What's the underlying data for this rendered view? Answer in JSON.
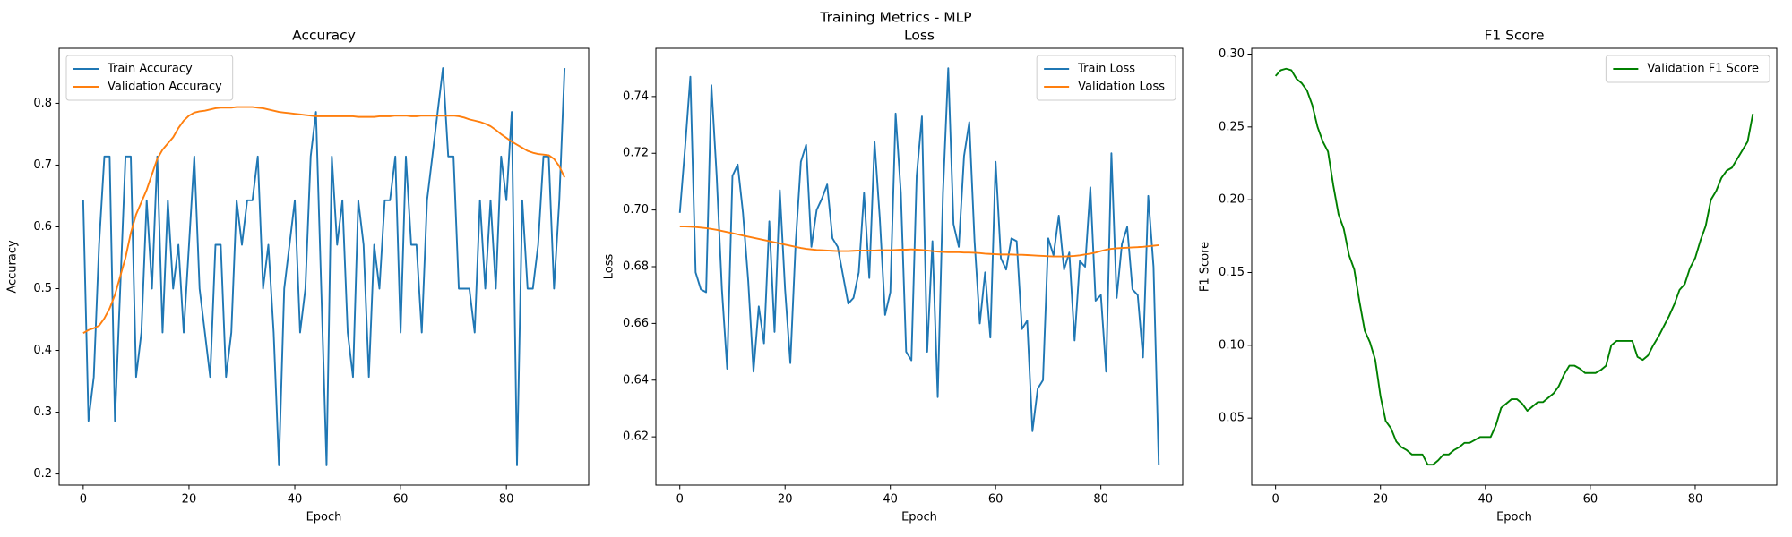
{
  "title": "Training Metrics - MLP",
  "chart_data": [
    {
      "type": "line",
      "title": "Accuracy",
      "xlabel": "Epoch",
      "ylabel": "Accuracy",
      "legend": "upper left",
      "x": [
        0,
        1,
        2,
        3,
        4,
        5,
        6,
        7,
        8,
        9,
        10,
        11,
        12,
        13,
        14,
        15,
        16,
        17,
        18,
        19,
        20,
        21,
        22,
        23,
        24,
        25,
        26,
        27,
        28,
        29,
        30,
        31,
        32,
        33,
        34,
        35,
        36,
        37,
        38,
        39,
        40,
        41,
        42,
        43,
        44,
        45,
        46,
        47,
        48,
        49,
        50,
        51,
        52,
        53,
        54,
        55,
        56,
        57,
        58,
        59,
        60,
        61,
        62,
        63,
        64,
        65,
        66,
        67,
        68,
        69,
        70,
        71,
        72,
        73,
        74,
        75,
        76,
        77,
        78,
        79,
        80,
        81,
        82,
        83,
        84,
        85,
        86,
        87,
        88,
        89,
        90,
        91
      ],
      "xlim": [
        -4.55,
        95.55
      ],
      "xticks": [
        0,
        20,
        40,
        60,
        80
      ],
      "ylim": [
        0.182,
        0.889
      ],
      "yticks": [
        0.2,
        0.3,
        0.4,
        0.5,
        0.6,
        0.7,
        0.8
      ],
      "series": [
        {
          "name": "Train Accuracy",
          "color": "#1f77b4",
          "values": [
            0.643,
            0.286,
            0.357,
            0.571,
            0.714,
            0.714,
            0.286,
            0.5,
            0.714,
            0.714,
            0.357,
            0.429,
            0.643,
            0.5,
            0.714,
            0.429,
            0.643,
            0.5,
            0.571,
            0.429,
            0.571,
            0.714,
            0.5,
            0.429,
            0.357,
            0.571,
            0.571,
            0.357,
            0.429,
            0.643,
            0.571,
            0.643,
            0.643,
            0.714,
            0.5,
            0.571,
            0.429,
            0.214,
            0.5,
            0.571,
            0.643,
            0.429,
            0.5,
            0.714,
            0.786,
            0.5,
            0.214,
            0.714,
            0.571,
            0.643,
            0.429,
            0.357,
            0.643,
            0.571,
            0.357,
            0.571,
            0.5,
            0.643,
            0.643,
            0.714,
            0.429,
            0.714,
            0.571,
            0.571,
            0.429,
            0.643,
            0.714,
            0.786,
            0.857,
            0.714,
            0.714,
            0.5,
            0.5,
            0.5,
            0.429,
            0.643,
            0.5,
            0.643,
            0.5,
            0.714,
            0.643,
            0.786,
            0.214,
            0.643,
            0.5,
            0.5,
            0.571,
            0.714,
            0.714,
            0.5,
            0.643,
            0.857
          ]
        },
        {
          "name": "Validation Accuracy",
          "color": "#ff7f0e",
          "values": [
            0.428,
            0.433,
            0.436,
            0.44,
            0.452,
            0.468,
            0.49,
            0.52,
            0.55,
            0.59,
            0.62,
            0.64,
            0.66,
            0.685,
            0.71,
            0.725,
            0.735,
            0.745,
            0.76,
            0.772,
            0.78,
            0.785,
            0.787,
            0.788,
            0.79,
            0.792,
            0.793,
            0.793,
            0.793,
            0.794,
            0.794,
            0.794,
            0.794,
            0.793,
            0.792,
            0.79,
            0.788,
            0.786,
            0.785,
            0.784,
            0.783,
            0.782,
            0.781,
            0.78,
            0.779,
            0.779,
            0.779,
            0.779,
            0.779,
            0.779,
            0.779,
            0.779,
            0.778,
            0.778,
            0.778,
            0.778,
            0.779,
            0.779,
            0.779,
            0.78,
            0.78,
            0.78,
            0.779,
            0.779,
            0.78,
            0.78,
            0.78,
            0.78,
            0.78,
            0.78,
            0.78,
            0.779,
            0.777,
            0.774,
            0.772,
            0.77,
            0.767,
            0.763,
            0.757,
            0.75,
            0.744,
            0.738,
            0.733,
            0.728,
            0.723,
            0.72,
            0.718,
            0.717,
            0.716,
            0.71,
            0.698,
            0.68
          ]
        }
      ]
    },
    {
      "type": "line",
      "title": "Loss",
      "xlabel": "Epoch",
      "ylabel": "Loss",
      "legend": "upper right",
      "x": [
        0,
        1,
        2,
        3,
        4,
        5,
        6,
        7,
        8,
        9,
        10,
        11,
        12,
        13,
        14,
        15,
        16,
        17,
        18,
        19,
        20,
        21,
        22,
        23,
        24,
        25,
        26,
        27,
        28,
        29,
        30,
        31,
        32,
        33,
        34,
        35,
        36,
        37,
        38,
        39,
        40,
        41,
        42,
        43,
        44,
        45,
        46,
        47,
        48,
        49,
        50,
        51,
        52,
        53,
        54,
        55,
        56,
        57,
        58,
        59,
        60,
        61,
        62,
        63,
        64,
        65,
        66,
        67,
        68,
        69,
        70,
        71,
        72,
        73,
        74,
        75,
        76,
        77,
        78,
        79,
        80,
        81,
        82,
        83,
        84,
        85,
        86,
        87,
        88,
        89,
        90,
        91
      ],
      "xlim": [
        -4.55,
        95.55
      ],
      "xticks": [
        0,
        20,
        40,
        60,
        80
      ],
      "ylim": [
        0.603,
        0.757
      ],
      "yticks": [
        0.62,
        0.64,
        0.66,
        0.68,
        {
          "value": 0.7,
          "label": "0.70"
        },
        0.72,
        0.74
      ],
      "series": [
        {
          "name": "Train Loss",
          "color": "#1f77b4",
          "values": [
            0.699,
            0.722,
            0.747,
            0.678,
            0.672,
            0.671,
            0.744,
            0.712,
            0.672,
            0.644,
            0.712,
            0.716,
            0.699,
            0.675,
            0.643,
            0.666,
            0.653,
            0.696,
            0.657,
            0.707,
            0.672,
            0.646,
            0.688,
            0.717,
            0.723,
            0.687,
            0.7,
            0.704,
            0.709,
            0.69,
            0.687,
            0.677,
            0.667,
            0.669,
            0.678,
            0.706,
            0.676,
            0.724,
            0.697,
            0.663,
            0.671,
            0.734,
            0.706,
            0.65,
            0.647,
            0.712,
            0.733,
            0.65,
            0.689,
            0.634,
            0.706,
            0.75,
            0.695,
            0.687,
            0.719,
            0.731,
            0.689,
            0.66,
            0.678,
            0.655,
            0.717,
            0.683,
            0.679,
            0.69,
            0.689,
            0.658,
            0.661,
            0.622,
            0.637,
            0.64,
            0.69,
            0.684,
            0.698,
            0.679,
            0.685,
            0.654,
            0.682,
            0.68,
            0.708,
            0.668,
            0.67,
            0.643,
            0.72,
            0.669,
            0.688,
            0.694,
            0.672,
            0.67,
            0.648,
            0.705,
            0.68,
            0.61
          ]
        },
        {
          "name": "Validation Loss",
          "color": "#ff7f0e",
          "values": [
            0.6942,
            0.6942,
            0.6941,
            0.694,
            0.6938,
            0.6936,
            0.6933,
            0.693,
            0.6926,
            0.6922,
            0.6918,
            0.6914,
            0.691,
            0.6906,
            0.6902,
            0.6898,
            0.6894,
            0.689,
            0.6886,
            0.6882,
            0.6878,
            0.6874,
            0.687,
            0.6866,
            0.6863,
            0.6861,
            0.6859,
            0.6858,
            0.6857,
            0.6856,
            0.6855,
            0.6855,
            0.6855,
            0.6856,
            0.6857,
            0.6857,
            0.6857,
            0.6857,
            0.6858,
            0.6858,
            0.6858,
            0.6859,
            0.686,
            0.686,
            0.6861,
            0.686,
            0.6859,
            0.6857,
            0.6855,
            0.6853,
            0.6852,
            0.6851,
            0.6851,
            0.6851,
            0.685,
            0.685,
            0.6849,
            0.6848,
            0.6846,
            0.6845,
            0.6844,
            0.6843,
            0.6843,
            0.6843,
            0.6842,
            0.6842,
            0.6841,
            0.684,
            0.6839,
            0.6838,
            0.6837,
            0.6836,
            0.6836,
            0.6836,
            0.6837,
            0.6838,
            0.684,
            0.6843,
            0.6846,
            0.685,
            0.6855,
            0.686,
            0.6863,
            0.6865,
            0.6866,
            0.6867,
            0.6868,
            0.6869,
            0.687,
            0.6872,
            0.6874,
            0.6876
          ]
        }
      ]
    },
    {
      "type": "line",
      "title": "F1 Score",
      "xlabel": "Epoch",
      "ylabel": "F1 Score",
      "legend": "upper right",
      "x": [
        0,
        1,
        2,
        3,
        4,
        5,
        6,
        7,
        8,
        9,
        10,
        11,
        12,
        13,
        14,
        15,
        16,
        17,
        18,
        19,
        20,
        21,
        22,
        23,
        24,
        25,
        26,
        27,
        28,
        29,
        30,
        31,
        32,
        33,
        34,
        35,
        36,
        37,
        38,
        39,
        40,
        41,
        42,
        43,
        44,
        45,
        46,
        47,
        48,
        49,
        50,
        51,
        52,
        53,
        54,
        55,
        56,
        57,
        58,
        59,
        60,
        61,
        62,
        63,
        64,
        65,
        66,
        67,
        68,
        69,
        70,
        71,
        72,
        73,
        74,
        75,
        76,
        77,
        78,
        79,
        80,
        81,
        82,
        83,
        84,
        85,
        86,
        87,
        88,
        89,
        90,
        91
      ],
      "xlim": [
        -4.55,
        95.55
      ],
      "xticks": [
        0,
        20,
        40,
        60,
        80
      ],
      "ylim": [
        0.004,
        0.304
      ],
      "yticks": [
        0.05,
        {
          "value": 0.1,
          "label": "0.10"
        },
        0.15,
        {
          "value": 0.2,
          "label": "0.20"
        },
        0.25,
        {
          "value": 0.3,
          "label": "0.30"
        }
      ],
      "series": [
        {
          "name": "Validation F1 Score",
          "color": "#008000",
          "values": [
            0.285,
            0.289,
            0.29,
            0.289,
            0.283,
            0.28,
            0.275,
            0.265,
            0.25,
            0.24,
            0.233,
            0.21,
            0.19,
            0.18,
            0.162,
            0.152,
            0.13,
            0.11,
            0.102,
            0.09,
            0.065,
            0.048,
            0.043,
            0.034,
            0.03,
            0.028,
            0.025,
            0.025,
            0.025,
            0.018,
            0.018,
            0.021,
            0.025,
            0.025,
            0.028,
            0.03,
            0.033,
            0.033,
            0.035,
            0.037,
            0.037,
            0.037,
            0.045,
            0.057,
            0.06,
            0.063,
            0.063,
            0.06,
            0.055,
            0.058,
            0.061,
            0.061,
            0.064,
            0.067,
            0.072,
            0.08,
            0.086,
            0.086,
            0.084,
            0.081,
            0.081,
            0.081,
            0.083,
            0.086,
            0.1,
            0.103,
            0.103,
            0.103,
            0.103,
            0.092,
            0.09,
            0.093,
            0.1,
            0.106,
            0.113,
            0.12,
            0.128,
            0.138,
            0.142,
            0.153,
            0.16,
            0.172,
            0.182,
            0.2,
            0.206,
            0.215,
            0.22,
            0.222,
            0.228,
            0.234,
            0.24,
            0.259
          ]
        }
      ]
    }
  ]
}
